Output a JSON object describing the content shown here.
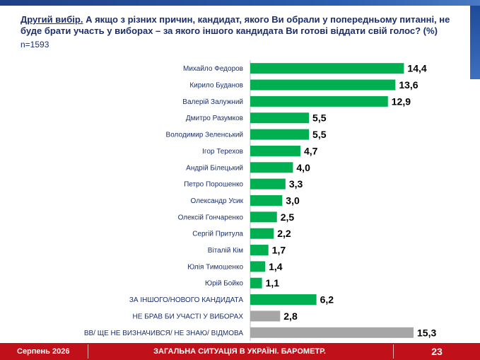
{
  "header": {
    "lead": "Другий вибір.",
    "question": " А якщо з різних причин, кандидат, якого Ви обрали у попередньому питанні, не буде брати участь у виборах – за якого іншого кандидата Ви готові віддати свій голос? (%)",
    "sample": "n=1593"
  },
  "chart_data": {
    "type": "bar",
    "orientation": "horizontal",
    "categories": [
      "Михайло Федоров",
      "Кирило Буданов",
      "Валерій Залужний",
      "Дмитро Разумков",
      "Володимир Зеленський",
      "Ігор Терехов",
      "Андрій Білецький",
      "Петро Порошенко",
      "Олександр Усик",
      "Олексій Гончаренко",
      "Сергій Притула",
      "Віталій Кім",
      "Юлія Тимошенко",
      "Юрій Бойко",
      "ЗА ІНШОГО/НОВОГО КАНДИДАТА",
      "НЕ БРАВ БИ УЧАСТІ У ВИБОРАХ",
      "ВВ/ ЩЕ НЕ ВИЗНАЧИВСЯ/ НЕ ЗНАЮ/ ВІДМОВА"
    ],
    "values": [
      14.4,
      13.6,
      12.9,
      5.5,
      5.5,
      4.7,
      4.0,
      3.3,
      3.0,
      2.5,
      2.2,
      1.7,
      1.4,
      1.1,
      6.2,
      2.8,
      15.3
    ],
    "value_labels": [
      "14,4",
      "13,6",
      "12,9",
      "5,5",
      "5,5",
      "4,7",
      "4,0",
      "3,3",
      "3,0",
      "2,5",
      "2,2",
      "1,7",
      "1,4",
      "1,1",
      "6,2",
      "2,8",
      "15,3"
    ],
    "bar_colors": [
      "#00b050",
      "#00b050",
      "#00b050",
      "#00b050",
      "#00b050",
      "#00b050",
      "#00b050",
      "#00b050",
      "#00b050",
      "#00b050",
      "#00b050",
      "#00b050",
      "#00b050",
      "#00b050",
      "#00b050",
      "#a6a6a6",
      "#a6a6a6"
    ],
    "xlim": [
      0,
      15.3
    ],
    "grid": false
  },
  "footer": {
    "date": "Серпень 2026",
    "title": "ЗАГАЛЬНА СИТУАЦІЯ В УКРАЇНІ. БАРОМЕТР.",
    "page": "23"
  }
}
